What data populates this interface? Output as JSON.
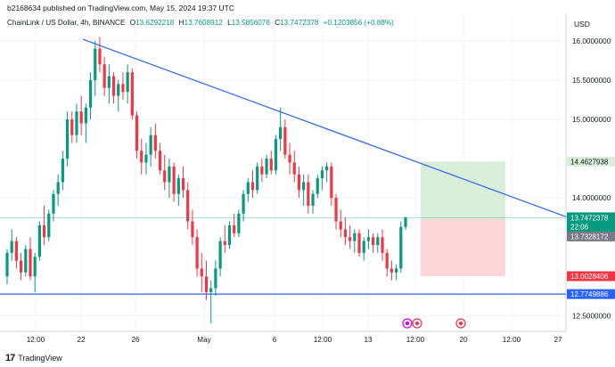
{
  "header": {
    "published": "b2168634 published on TradingView.com, May 15, 2024 19:37 UTC"
  },
  "legend": {
    "symbol": "ChainLink / US Dollar, 4h, BINANCE",
    "open_label": "O",
    "open": "13.6292218",
    "high_label": "H",
    "high": "13.7608912",
    "low_label": "L",
    "low": "13.5856076",
    "close_label": "C",
    "close": "13.7472378",
    "change": "+0.1203856 (+0.88%)"
  },
  "currency": "USD",
  "colors": {
    "up": "#089981",
    "down": "#f23645",
    "trendline": "#2962ff",
    "profit_zone": "#d8eed8",
    "loss_zone": "#fbd7d9",
    "price_line": "#089981"
  },
  "price_axis": {
    "ticks": [
      "16.0000000",
      "15.5000000",
      "15.0000000",
      "14.0000000",
      "12.5000000"
    ],
    "labels": {
      "target": "14.4627938",
      "last_price": "13.7472378",
      "countdown": "22:06",
      "entry": "13.7328172",
      "stop": "13.0028406",
      "support": "12.7749886"
    }
  },
  "time_axis": {
    "ticks": [
      "12:00",
      "22",
      "26",
      "May",
      "6",
      "12:00",
      "13",
      "12:00",
      "20",
      "12:00",
      "27"
    ]
  },
  "footer": {
    "logo": "17",
    "brand": "TradingView"
  },
  "chart_data": {
    "type": "candlestick",
    "symbol": "LINKUSD",
    "interval": "4h",
    "y_range": [
      12.3,
      16.35
    ],
    "support_level": 12.7749886,
    "trendline": {
      "start_price": 16.02,
      "end_price": 13.76
    },
    "position": {
      "target": 14.4627938,
      "entry": 13.7328172,
      "stop": 13.0028406
    },
    "last_price": 13.7472378,
    "candles": [
      [
        13.0,
        13.35,
        12.9,
        13.3
      ],
      [
        13.3,
        13.6,
        13.2,
        13.45
      ],
      [
        13.45,
        13.5,
        13.1,
        13.2
      ],
      [
        13.2,
        13.3,
        12.95,
        13.05
      ],
      [
        13.05,
        13.4,
        13.0,
        13.35
      ],
      [
        13.35,
        13.5,
        12.95,
        13.0
      ],
      [
        13.0,
        13.3,
        12.8,
        13.25
      ],
      [
        13.25,
        13.7,
        13.2,
        13.65
      ],
      [
        13.65,
        13.9,
        13.4,
        13.5
      ],
      [
        13.5,
        13.85,
        13.45,
        13.8
      ],
      [
        13.8,
        14.1,
        13.7,
        14.05
      ],
      [
        14.05,
        14.3,
        13.9,
        14.2
      ],
      [
        14.2,
        14.6,
        14.1,
        14.5
      ],
      [
        14.5,
        15.1,
        14.4,
        15.0
      ],
      [
        15.0,
        15.1,
        14.7,
        14.8
      ],
      [
        14.8,
        15.2,
        14.7,
        15.1
      ],
      [
        15.1,
        15.3,
        14.8,
        14.95
      ],
      [
        14.95,
        15.2,
        14.7,
        15.15
      ],
      [
        15.15,
        15.6,
        15.0,
        15.5
      ],
      [
        15.5,
        16.0,
        15.3,
        15.9
      ],
      [
        15.9,
        16.05,
        15.6,
        15.7
      ],
      [
        15.7,
        15.8,
        15.3,
        15.4
      ],
      [
        15.4,
        15.7,
        15.2,
        15.55
      ],
      [
        15.55,
        15.6,
        15.2,
        15.3
      ],
      [
        15.3,
        15.5,
        15.1,
        15.45
      ],
      [
        15.45,
        15.6,
        15.25,
        15.35
      ],
      [
        15.35,
        15.7,
        15.2,
        15.6
      ],
      [
        15.6,
        15.65,
        15.0,
        15.05
      ],
      [
        15.05,
        15.1,
        14.5,
        14.6
      ],
      [
        14.6,
        14.75,
        14.3,
        14.45
      ],
      [
        14.45,
        14.7,
        14.3,
        14.55
      ],
      [
        14.55,
        14.9,
        14.4,
        14.8
      ],
      [
        14.8,
        14.95,
        14.5,
        14.6
      ],
      [
        14.6,
        14.7,
        14.3,
        14.35
      ],
      [
        14.35,
        14.55,
        14.1,
        14.2
      ],
      [
        14.2,
        14.5,
        14.0,
        14.4
      ],
      [
        14.4,
        14.45,
        13.95,
        14.05
      ],
      [
        14.05,
        14.3,
        13.9,
        14.25
      ],
      [
        14.25,
        14.4,
        14.0,
        14.1
      ],
      [
        14.1,
        14.2,
        13.6,
        13.7
      ],
      [
        13.7,
        13.85,
        13.4,
        13.5
      ],
      [
        13.5,
        13.6,
        13.0,
        13.1
      ],
      [
        13.1,
        13.3,
        12.8,
        13.0
      ],
      [
        13.0,
        13.2,
        12.7,
        12.8
      ],
      [
        12.8,
        12.95,
        12.4,
        12.85
      ],
      [
        12.85,
        13.2,
        12.75,
        13.1
      ],
      [
        13.1,
        13.5,
        13.0,
        13.45
      ],
      [
        13.45,
        13.65,
        13.3,
        13.4
      ],
      [
        13.4,
        13.7,
        13.35,
        13.65
      ],
      [
        13.65,
        13.8,
        13.5,
        13.55
      ],
      [
        13.55,
        13.85,
        13.5,
        13.8
      ],
      [
        13.8,
        14.1,
        13.7,
        14.05
      ],
      [
        14.05,
        14.25,
        13.95,
        14.2
      ],
      [
        14.2,
        14.35,
        14.0,
        14.1
      ],
      [
        14.1,
        14.45,
        14.05,
        14.4
      ],
      [
        14.4,
        14.5,
        14.2,
        14.3
      ],
      [
        14.3,
        14.55,
        14.25,
        14.5
      ],
      [
        14.5,
        14.6,
        14.3,
        14.35
      ],
      [
        14.35,
        14.8,
        14.3,
        14.75
      ],
      [
        14.75,
        15.15,
        14.6,
        14.9
      ],
      [
        14.9,
        15.0,
        14.5,
        14.55
      ],
      [
        14.55,
        14.7,
        14.3,
        14.45
      ],
      [
        14.45,
        14.6,
        14.2,
        14.3
      ],
      [
        14.3,
        14.4,
        14.0,
        14.1
      ],
      [
        14.1,
        14.3,
        13.9,
        14.2
      ],
      [
        14.2,
        14.3,
        13.8,
        13.9
      ],
      [
        13.9,
        14.1,
        13.8,
        14.05
      ],
      [
        14.05,
        14.3,
        14.0,
        14.25
      ],
      [
        14.25,
        14.4,
        14.1,
        14.35
      ],
      [
        14.35,
        14.45,
        14.2,
        14.4
      ],
      [
        14.4,
        14.45,
        13.9,
        14.0
      ],
      [
        14.0,
        14.05,
        13.6,
        13.7
      ],
      [
        13.7,
        13.85,
        13.5,
        13.6
      ],
      [
        13.6,
        13.75,
        13.4,
        13.5
      ],
      [
        13.5,
        13.65,
        13.35,
        13.45
      ],
      [
        13.45,
        13.6,
        13.3,
        13.55
      ],
      [
        13.55,
        13.6,
        13.25,
        13.3
      ],
      [
        13.3,
        13.5,
        13.2,
        13.45
      ],
      [
        13.45,
        13.6,
        13.35,
        13.5
      ],
      [
        13.5,
        13.55,
        13.3,
        13.4
      ],
      [
        13.4,
        13.55,
        13.3,
        13.5
      ],
      [
        13.5,
        13.6,
        13.2,
        13.3
      ],
      [
        13.3,
        13.35,
        13.0,
        13.1
      ],
      [
        13.1,
        13.2,
        12.95,
        13.05
      ],
      [
        13.05,
        13.15,
        12.95,
        13.1
      ],
      [
        13.1,
        13.7,
        13.05,
        13.63
      ],
      [
        13.63,
        13.76,
        13.59,
        13.75
      ]
    ]
  }
}
